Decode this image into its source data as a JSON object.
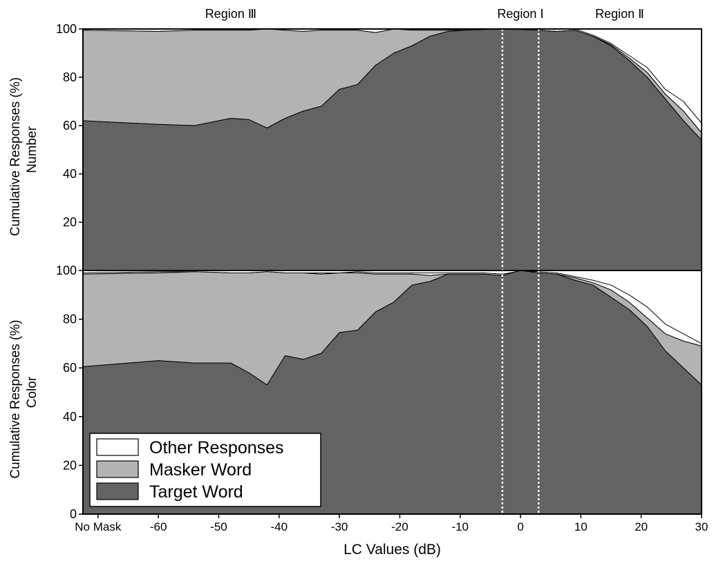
{
  "chart_data": {
    "type": "area",
    "stacked": true,
    "xlabel": "LC Values (dB)",
    "x_ticks": [
      {
        "x": -70,
        "label": "No Mask"
      },
      {
        "x": -60,
        "label": "-60"
      },
      {
        "x": -50,
        "label": "-50"
      },
      {
        "x": -40,
        "label": "-40"
      },
      {
        "x": -30,
        "label": "-30"
      },
      {
        "x": -20,
        "label": "-20"
      },
      {
        "x": -10,
        "label": "-10"
      },
      {
        "x": 0,
        "label": "0"
      },
      {
        "x": 10,
        "label": "10"
      },
      {
        "x": 20,
        "label": "20"
      },
      {
        "x": 30,
        "label": "30"
      }
    ],
    "xlim": [
      -72.5,
      30
    ],
    "region_markers": [
      -3,
      3
    ],
    "region_labels": [
      {
        "x": -48,
        "text": "Region Ⅲ"
      },
      {
        "x": 0,
        "text": "Region Ⅰ"
      },
      {
        "x": 13,
        "text": "Region Ⅱ"
      }
    ],
    "legend": {
      "placement": "bottom-left",
      "entries": [
        {
          "label": "Other Responses",
          "color": "#ffffff"
        },
        {
          "label": "Masker Word",
          "color": "#b3b3b3"
        },
        {
          "label": "Target Word",
          "color": "#636363"
        }
      ]
    },
    "colors": {
      "target": "#636363",
      "masker": "#b3b3b3",
      "other": "#ffffff"
    },
    "panels": [
      {
        "ylabel_line1": "Cumulative Responses (%)",
        "ylabel_line2": "Number",
        "ylim": [
          0,
          100
        ],
        "y_ticks": [
          "20",
          "40",
          "60",
          "80",
          "100"
        ],
        "x": [
          -72.5,
          -60,
          -54,
          -48,
          -45,
          -42,
          -39,
          -36,
          -33,
          -30,
          -27,
          -24,
          -21,
          -18,
          -15,
          -12,
          -9,
          -6,
          -3,
          0,
          3,
          6,
          9,
          12,
          15,
          18,
          21,
          24,
          27,
          30
        ],
        "target": [
          62,
          60.5,
          60,
          63,
          62.5,
          59,
          63,
          66,
          68,
          75,
          77,
          85,
          90,
          93,
          97,
          99,
          99.5,
          99.8,
          100,
          99.8,
          99.5,
          99,
          99.5,
          97,
          93,
          87,
          80,
          71,
          62,
          54
        ],
        "masker_cum": [
          99.5,
          99,
          99.5,
          99.5,
          99.5,
          100,
          99.5,
          99,
          99.5,
          99.5,
          99.5,
          98.5,
          100,
          99.5,
          99.5,
          99.5,
          99.5,
          99.8,
          100,
          99.8,
          99.5,
          99,
          99.5,
          97,
          93.5,
          88,
          82,
          73,
          66,
          57
        ],
        "other_cum": [
          100,
          100,
          100,
          100,
          100,
          100,
          100,
          100,
          100,
          100,
          100,
          100,
          100,
          100,
          100,
          100,
          100,
          100,
          100,
          100,
          100,
          100,
          100,
          97.5,
          94,
          89,
          84,
          75,
          70,
          61
        ]
      },
      {
        "ylabel_line1": "Cumulative Responses (%)",
        "ylabel_line2": "Color",
        "ylim": [
          0,
          100
        ],
        "y_ticks": [
          "0",
          "20",
          "40",
          "60",
          "80",
          "100"
        ],
        "x": [
          -72.5,
          -60,
          -54,
          -48,
          -45,
          -42,
          -39,
          -36,
          -33,
          -30,
          -27,
          -24,
          -21,
          -18,
          -15,
          -12,
          -9,
          -6,
          -3,
          0,
          3,
          6,
          9,
          12,
          15,
          18,
          21,
          24,
          27,
          30
        ],
        "target": [
          60.5,
          63,
          62,
          62,
          58,
          53,
          65,
          63.5,
          66,
          74.5,
          75.5,
          83,
          87,
          94,
          95.5,
          98.5,
          98.5,
          98.5,
          98,
          100,
          99,
          98.5,
          96,
          94,
          89,
          84,
          77,
          67,
          60,
          53
        ],
        "masker_cum": [
          98.5,
          99,
          99.5,
          99,
          99,
          99.5,
          99,
          99,
          98.5,
          99,
          99,
          98.5,
          98.5,
          98.5,
          98,
          98.5,
          98.5,
          98.5,
          98,
          99.5,
          99,
          98.5,
          97,
          95,
          92,
          87,
          80.5,
          74,
          71,
          69
        ],
        "other_cum": [
          99,
          99.5,
          99.5,
          99,
          99,
          99.5,
          99,
          99,
          99,
          99,
          99.5,
          99,
          99,
          99,
          99,
          99,
          99,
          99,
          98.5,
          99.8,
          99.5,
          99,
          97.5,
          96,
          94,
          90,
          85,
          78,
          74,
          70
        ]
      }
    ]
  }
}
